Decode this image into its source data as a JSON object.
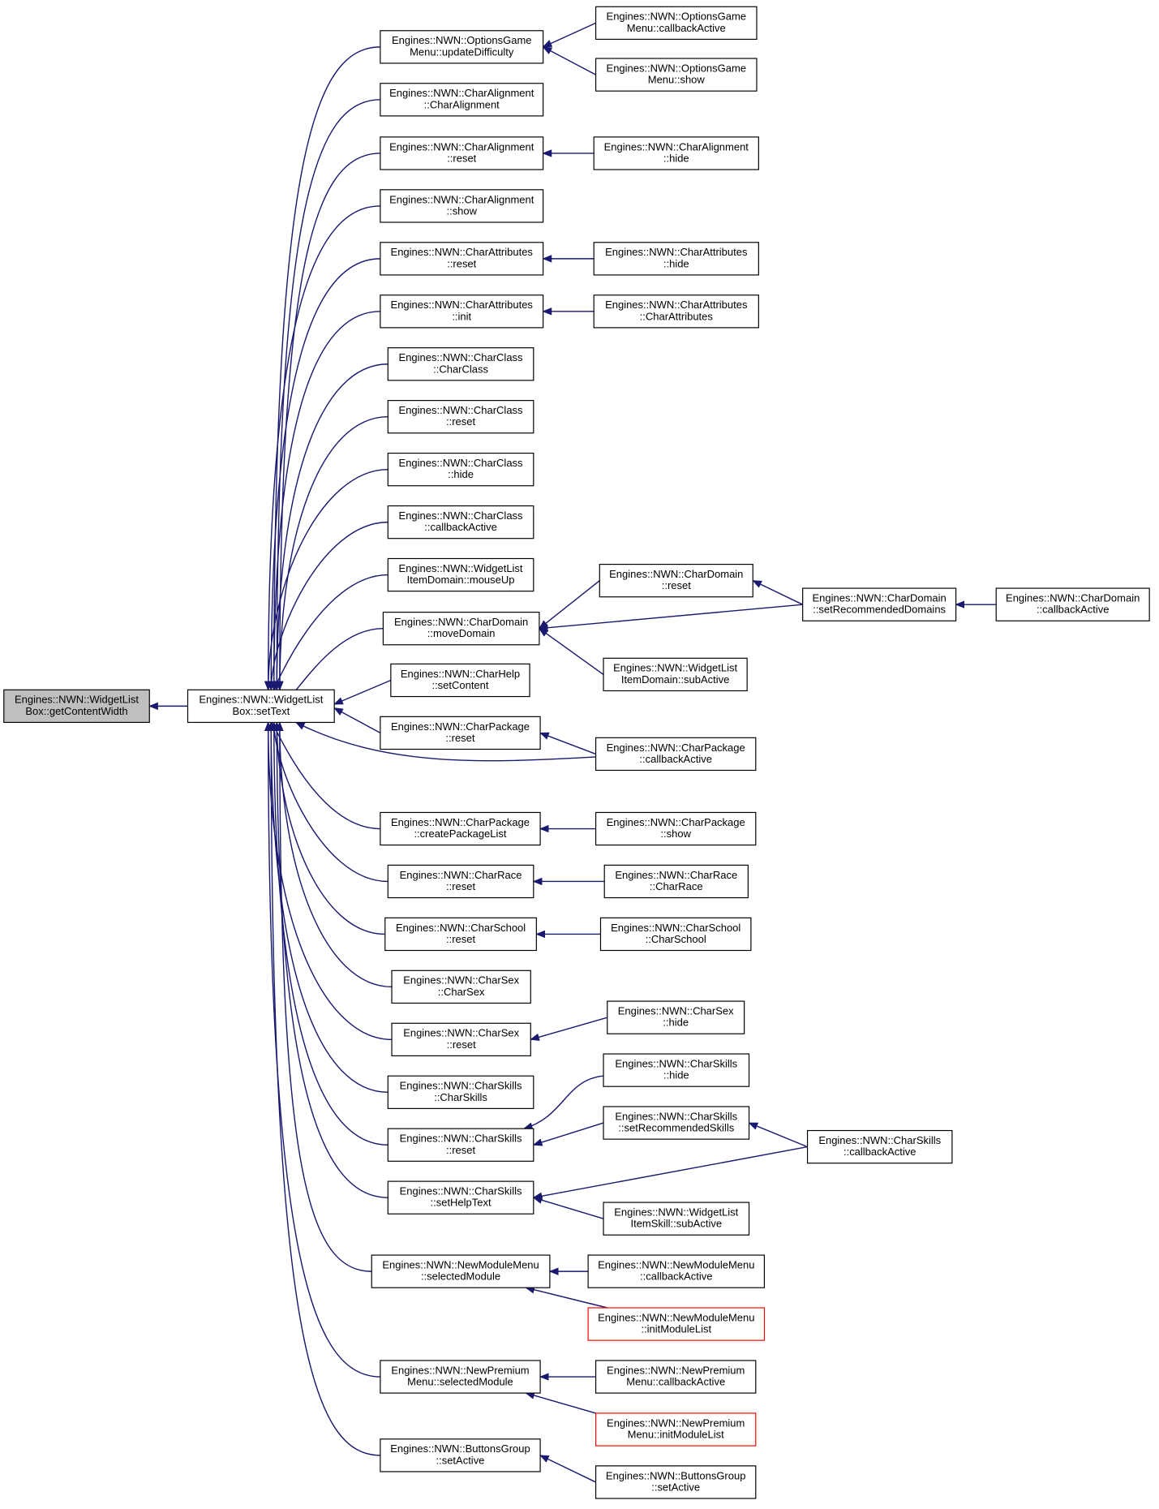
{
  "nodes": [
    {
      "lines": [
        "Engines::NWN::WidgetList",
        "Box::getContentWidth"
      ]
    },
    {
      "lines": [
        "Engines::NWN::WidgetList",
        "Box::setText"
      ]
    },
    {
      "lines": [
        "Engines::NWN::OptionsGame",
        "Menu::updateDifficulty"
      ]
    },
    {
      "lines": [
        "Engines::NWN::CharAlignment",
        "::CharAlignment"
      ]
    },
    {
      "lines": [
        "Engines::NWN::CharAlignment",
        "::reset"
      ]
    },
    {
      "lines": [
        "Engines::NWN::CharAlignment",
        "::show"
      ]
    },
    {
      "lines": [
        "Engines::NWN::CharAttributes",
        "::reset"
      ]
    },
    {
      "lines": [
        "Engines::NWN::CharAttributes",
        "::init"
      ]
    },
    {
      "lines": [
        "Engines::NWN::CharClass",
        "::CharClass"
      ]
    },
    {
      "lines": [
        "Engines::NWN::CharClass",
        "::reset"
      ]
    },
    {
      "lines": [
        "Engines::NWN::CharClass",
        "::hide"
      ]
    },
    {
      "lines": [
        "Engines::NWN::CharClass",
        "::callbackActive"
      ]
    },
    {
      "lines": [
        "Engines::NWN::WidgetList",
        "ItemDomain::mouseUp"
      ]
    },
    {
      "lines": [
        "Engines::NWN::CharDomain",
        "::moveDomain"
      ]
    },
    {
      "lines": [
        "Engines::NWN::CharHelp",
        "::setContent"
      ]
    },
    {
      "lines": [
        "Engines::NWN::CharPackage",
        "::reset"
      ]
    },
    {
      "lines": [
        "Engines::NWN::CharPackage",
        "::createPackageList"
      ]
    },
    {
      "lines": [
        "Engines::NWN::CharRace",
        "::reset"
      ]
    },
    {
      "lines": [
        "Engines::NWN::CharSchool",
        "::reset"
      ]
    },
    {
      "lines": [
        "Engines::NWN::CharSex",
        "::CharSex"
      ]
    },
    {
      "lines": [
        "Engines::NWN::CharSex",
        "::reset"
      ]
    },
    {
      "lines": [
        "Engines::NWN::CharSkills",
        "::CharSkills"
      ]
    },
    {
      "lines": [
        "Engines::NWN::CharSkills",
        "::reset"
      ]
    },
    {
      "lines": [
        "Engines::NWN::CharSkills",
        "::setHelpText"
      ]
    },
    {
      "lines": [
        "Engines::NWN::NewModuleMenu",
        "::selectedModule"
      ]
    },
    {
      "lines": [
        "Engines::NWN::NewPremium",
        "Menu::selectedModule"
      ]
    },
    {
      "lines": [
        "Engines::NWN::ButtonsGroup",
        "::setActive"
      ]
    },
    {
      "lines": [
        "Engines::NWN::OptionsGame",
        "Menu::callbackActive"
      ]
    },
    {
      "lines": [
        "Engines::NWN::OptionsGame",
        "Menu::show"
      ]
    },
    {
      "lines": [
        "Engines::NWN::CharAlignment",
        "::hide"
      ]
    },
    {
      "lines": [
        "Engines::NWN::CharAttributes",
        "::hide"
      ]
    },
    {
      "lines": [
        "Engines::NWN::CharAttributes",
        "::CharAttributes"
      ]
    },
    {
      "lines": [
        "Engines::NWN::CharDomain",
        "::reset"
      ]
    },
    {
      "lines": [
        "Engines::NWN::WidgetList",
        "ItemDomain::subActive"
      ]
    },
    {
      "lines": [
        "Engines::NWN::CharPackage",
        "::callbackActive"
      ]
    },
    {
      "lines": [
        "Engines::NWN::CharPackage",
        "::show"
      ]
    },
    {
      "lines": [
        "Engines::NWN::CharRace",
        "::CharRace"
      ]
    },
    {
      "lines": [
        "Engines::NWN::CharSchool",
        "::CharSchool"
      ]
    },
    {
      "lines": [
        "Engines::NWN::CharSex",
        "::hide"
      ]
    },
    {
      "lines": [
        "Engines::NWN::CharSkills",
        "::hide"
      ]
    },
    {
      "lines": [
        "Engines::NWN::CharSkills",
        "::setRecommendedSkills"
      ]
    },
    {
      "lines": [
        "Engines::NWN::WidgetList",
        "ItemSkill::subActive"
      ]
    },
    {
      "lines": [
        "Engines::NWN::NewModuleMenu",
        "::callbackActive"
      ]
    },
    {
      "lines": [
        "Engines::NWN::NewModuleMenu",
        "::initModuleList"
      ]
    },
    {
      "lines": [
        "Engines::NWN::NewPremium",
        "Menu::callbackActive"
      ]
    },
    {
      "lines": [
        "Engines::NWN::NewPremium",
        "Menu::initModuleList"
      ]
    },
    {
      "lines": [
        "Engines::NWN::ButtonsGroup",
        "::setActive"
      ]
    },
    {
      "lines": [
        "Engines::NWN::CharDomain",
        "::setRecommendedDomains"
      ]
    },
    {
      "lines": [
        "Engines::NWN::CharSkills",
        "::callbackActive"
      ]
    },
    {
      "lines": [
        "Engines::NWN::CharDomain",
        "::callbackActive"
      ]
    }
  ]
}
